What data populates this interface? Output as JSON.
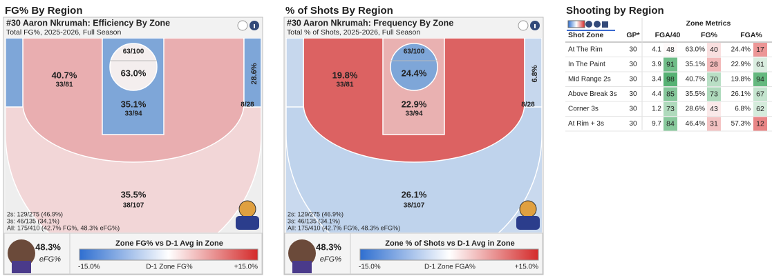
{
  "panels": [
    {
      "header": "FG% By Region",
      "title": "#30 Aaron Nkrumah: Efficiency By Zone",
      "subtitle": "Total FG%, 2025-2026, Full Season",
      "zones": [
        {
          "pct": "40.7%",
          "made": "33/81"
        },
        {
          "pct": "63.0%",
          "made": "63/100"
        },
        {
          "pct": "35.1%",
          "made": "33/94"
        },
        {
          "pct": "28.6%",
          "made": "8/28"
        },
        {
          "pct": "35.5%",
          "made": "38/107"
        }
      ],
      "summary": [
        "2s: 129/275 (46.9%)",
        "3s: 46/135 (34.1%)",
        "All: 175/410 (42.7% FG%, 48.3% eFG%)"
      ],
      "efg_value": "48.3%",
      "efg_label": "eFG%",
      "legend_title": "Zone FG% vs D-1 Avg in Zone",
      "legend_min": "-15.0%",
      "legend_mid": "D-1 Zone FG%",
      "legend_max": "+15.0%"
    },
    {
      "header": "% of Shots By Region",
      "title": "#30 Aaron Nkrumah: Frequency By Zone",
      "subtitle": "Total % of Shots, 2025-2026, Full Season",
      "zones": [
        {
          "pct": "19.8%",
          "made": "33/81"
        },
        {
          "pct": "24.4%",
          "made": "63/100"
        },
        {
          "pct": "22.9%",
          "made": "33/94"
        },
        {
          "pct": "6.8%",
          "made": "8/28"
        },
        {
          "pct": "26.1%",
          "made": "38/107"
        }
      ],
      "summary": [
        "2s: 129/275 (46.9%)",
        "3s: 46/135 (34.1%)",
        "All: 175/410 (42.7% FG%, 48.3% eFG%)"
      ],
      "efg_value": "48.3%",
      "efg_label": "eFG%",
      "legend_title": "Zone % of Shots vs D-1 Avg in Zone",
      "legend_min": "-15.0%",
      "legend_mid": "D-1 Zone FGA%",
      "legend_max": "+15.0%"
    }
  ],
  "table": {
    "title": "Shooting by Region",
    "group_header": "Zone Metrics",
    "columns": [
      "Shot Zone",
      "GP*",
      "FGA/40",
      "FG%",
      "FGA%"
    ],
    "rows": [
      [
        "At The Rim",
        30,
        4.1,
        48,
        "63.0%",
        40,
        "24.4%",
        17
      ],
      [
        "In The Paint",
        30,
        3.9,
        91,
        "35.1%",
        28,
        "22.9%",
        61
      ],
      [
        "Mid Range 2s",
        30,
        3.4,
        98,
        "40.7%",
        70,
        "19.8%",
        94
      ],
      [
        "Above Break 3s",
        30,
        4.4,
        85,
        "35.5%",
        73,
        "26.1%",
        67
      ],
      [
        "Corner 3s",
        30,
        1.2,
        73,
        "28.6%",
        43,
        "6.8%",
        62
      ],
      [
        "At Rim + 3s",
        30,
        9.7,
        84,
        "46.4%",
        31,
        "57.3%",
        12
      ]
    ]
  }
}
